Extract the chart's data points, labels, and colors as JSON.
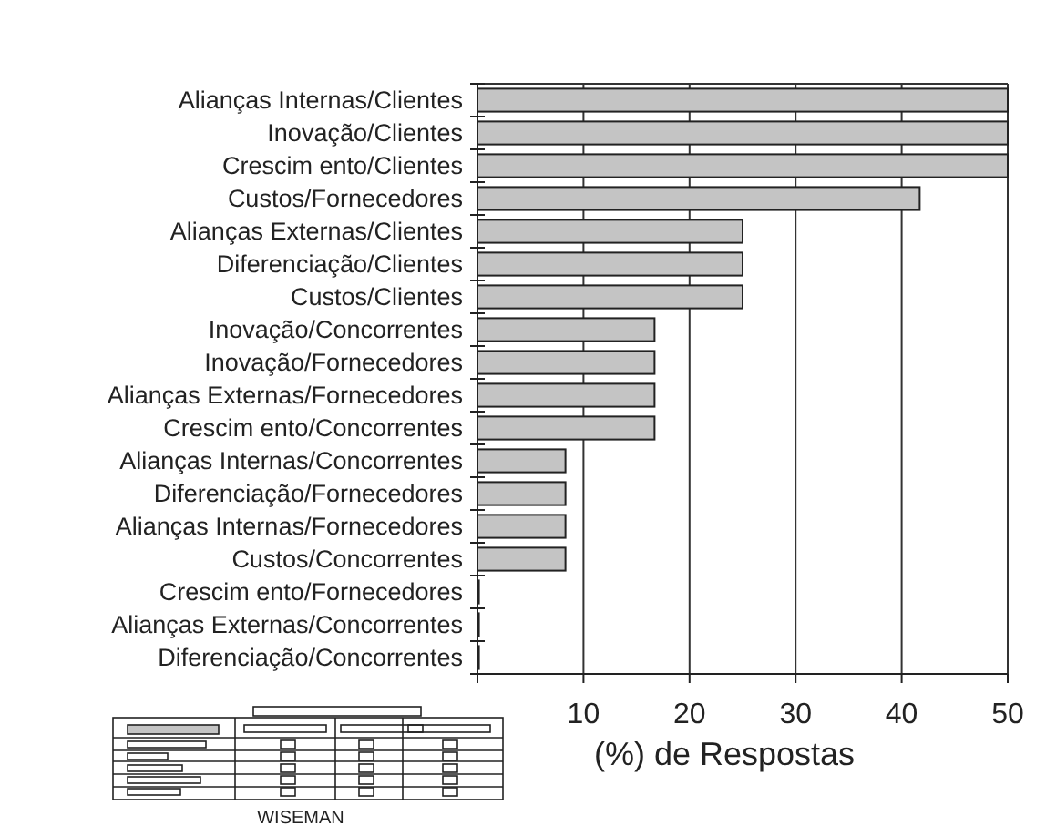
{
  "chart_data": {
    "type": "bar",
    "orientation": "horizontal",
    "categories": [
      "Alianças Internas/Clientes",
      "Inovação/Clientes",
      "Crescim ento/Clientes",
      "Custos/Fornecedores",
      "Alianças Externas/Clientes",
      "Diferenciação/Clientes",
      "Custos/Clientes",
      "Inovação/Concorrentes",
      "Inovação/Fornecedores",
      "Alianças Externas/Fornecedores",
      "Crescim ento/Concorrentes",
      "Alianças Internas/Concorrentes",
      "Diferenciação/Fornecedores",
      "Alianças Internas/Fornecedores",
      "Custos/Concorrentes",
      "Crescim ento/Fornecedores",
      "Alianças Externas/Concorrentes",
      "Diferenciação/Concorrentes"
    ],
    "values": [
      50,
      50,
      50,
      41.7,
      25,
      25,
      25,
      16.7,
      16.7,
      16.7,
      16.7,
      8.3,
      8.3,
      8.3,
      8.3,
      0,
      0,
      0
    ],
    "color": "#c4c4c4",
    "xlim": [
      0,
      50
    ],
    "xticks": [
      {
        "value": 0,
        "label": null
      },
      10,
      20,
      30,
      40,
      50
    ],
    "xlabel": "(%) de Respostas",
    "grid": "x",
    "annotations": [
      "WISEMAN"
    ]
  }
}
